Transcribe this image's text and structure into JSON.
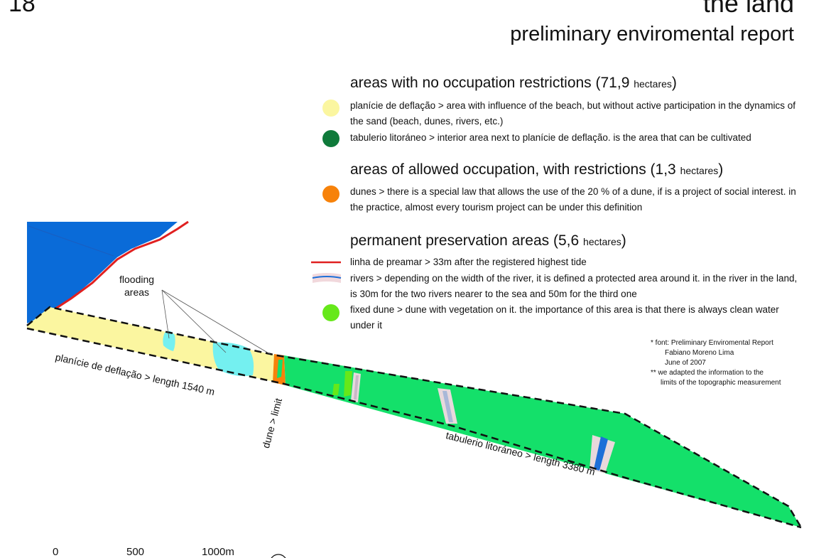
{
  "page_number": "18",
  "title": "the land",
  "subtitle": "preliminary enviromental report",
  "colors": {
    "sea": "#0a6bd8",
    "planicie": "#fbf6a0",
    "tabuleiro": "#0f7a3a",
    "dunes": "#f7820a",
    "preamar": "#e02020",
    "fixed_dune": "#66e81a",
    "land_green": "#14e06a",
    "flooding": "#74f0f0",
    "river": "#1d6fd8"
  },
  "legend": {
    "sections": [
      {
        "heading": "areas with no occupation restrictions (71,9",
        "unit": "hectares",
        "close": ")",
        "items": [
          {
            "swatch": "circle",
            "color": "#fbf6a0",
            "text": "planície de deflação > area with influence of the beach, but without active participation in the dynamics of the sand (beach, dunes, rivers, etc.)"
          },
          {
            "swatch": "circle",
            "color": "#0f7a3a",
            "text": "tabulerio litoráneo > interior area next to planície de deflação. is the area that can be cultivated"
          }
        ]
      },
      {
        "heading": "areas of allowed occupation, with restrictions (1,3",
        "unit": "hectares",
        "close": ")",
        "items": [
          {
            "swatch": "circle",
            "color": "#f7820a",
            "text": "dunes > there is a special law that allows the use of the 20 % of a dune, if is a project of social interest. in the practice, almost every tourism project can be under this definition"
          }
        ]
      },
      {
        "heading": "permanent preservation areas (5,6",
        "unit": "hectares",
        "close": ")",
        "items": [
          {
            "swatch": "line",
            "color": "#e02020",
            "text": "linha de preamar > 33m after the registered highest tide"
          },
          {
            "swatch": "river",
            "color": "#1d6fd8",
            "text": "rivers > depending on the width of the river, it is defined a protected area around it. in the river in the land, is 30m for the two rivers nearer to the sea and 50m for the third one"
          },
          {
            "swatch": "circle",
            "color": "#66e81a",
            "text": "fixed dune > dune with vegetation on it. the importance of this area is that there is always clean water under it"
          }
        ]
      }
    ]
  },
  "notes": {
    "line1": "* font: Preliminary Enviromental Report",
    "line2": "Fabiano Moreno Lima",
    "line3": "June of 2007",
    "line4": "** we adapted the information to the",
    "line5": "limits of the topographic measurement"
  },
  "map_labels": {
    "flooding_line1": "flooding",
    "flooding_line2": "areas",
    "planicie": "planície de deflação > length 1540 m",
    "dune": "dune > limit",
    "tabuleiro": "tabulerio litoráneo > length 3380 m"
  },
  "scale_bar": {
    "labels": [
      "0",
      "500",
      "1000m"
    ]
  }
}
